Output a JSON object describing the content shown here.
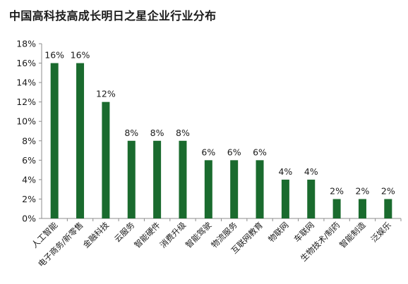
{
  "title": "中国高科技高成长明日之星企业行业分布",
  "colors": {
    "bar": "#1a6b2e",
    "axis": "#8c8c8c",
    "text": "#1a1a1a"
  },
  "chart_data": {
    "type": "bar",
    "title": "中国高科技高成长明日之星企业行业分布",
    "xlabel": "",
    "ylabel": "",
    "ylim": [
      0,
      18
    ],
    "y_ticks": [
      "0%",
      "2%",
      "4%",
      "6%",
      "8%",
      "10%",
      "12%",
      "14%",
      "16%",
      "18%"
    ],
    "y_tick_values": [
      0,
      2,
      4,
      6,
      8,
      10,
      12,
      14,
      16,
      18
    ],
    "grid": false,
    "categories": [
      "人工智能",
      "电子商务/新零售",
      "金融科技",
      "云服务",
      "智能硬件",
      "消费升级",
      "智能驾驶",
      "物流服务",
      "互联网教育",
      "物联网",
      "车联网",
      "生物技术/制药",
      "智能制造",
      "泛娱乐"
    ],
    "values": [
      16,
      16,
      12,
      8,
      8,
      8,
      6,
      6,
      6,
      4,
      4,
      2,
      2,
      2
    ],
    "data_labels": [
      "16%",
      "16%",
      "12%",
      "8%",
      "8%",
      "8%",
      "6%",
      "6%",
      "6%",
      "4%",
      "4%",
      "2%",
      "2%",
      "2%"
    ]
  }
}
